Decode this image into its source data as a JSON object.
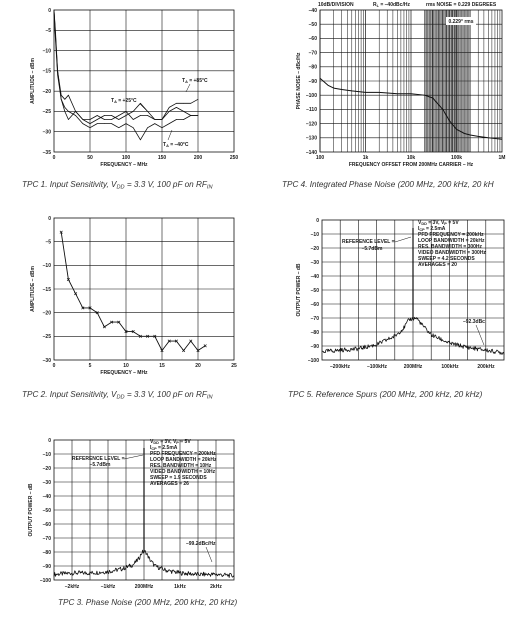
{
  "charts": [
    {
      "id": "tpc1",
      "caption": {
        "pre": "TPC 1.  Input Sensitivity, V",
        "sub1": "DD",
        "mid": " = 3.3 V, 100 pF on RF",
        "sub2": "IN"
      },
      "ylabel": "AMPLITUDE – dBm",
      "xlabel": "FREQUENCY – MHz",
      "xticks": [
        "0",
        "50",
        "100",
        "150",
        "200",
        "250"
      ],
      "yticks": [
        "0",
        "–5",
        "–10",
        "–15",
        "–20",
        "–25",
        "–30",
        "–35"
      ],
      "annotations": [
        {
          "pre": "T",
          "sub": "A",
          "post": " = +85°C"
        },
        {
          "pre": "T",
          "sub": "A",
          "post": " = +25°C"
        },
        {
          "pre": "T",
          "sub": "A",
          "post": " = –40°C"
        }
      ]
    },
    {
      "id": "tpc2",
      "caption": {
        "pre": "TPC 2.  Input Sensitivity, V",
        "sub1": "DD",
        "mid": " = 3.3 V, 100 pF on RF",
        "sub2": "IN"
      },
      "ylabel": "AMPLITUDE – dBm",
      "xlabel": "FREQUENCY – MHz",
      "xticks": [
        "0",
        "5",
        "10",
        "15",
        "20",
        "25"
      ],
      "yticks": [
        "0",
        "–5",
        "–10",
        "–15",
        "–20",
        "–25",
        "–30"
      ]
    },
    {
      "id": "tpc3",
      "caption": "TPC 3.  Phase Noise (200 MHz, 200 kHz, 20 kHz)",
      "ylabel": "OUTPUT POWER – dB",
      "xticks": [
        "–2kHz",
        "–1kHz",
        "200MHz",
        "1kHz",
        "2kHz"
      ],
      "yticks": [
        "0",
        "–10",
        "–20",
        "–30",
        "–40",
        "–50",
        "–60",
        "–70",
        "–80",
        "–90",
        "–100"
      ],
      "ref_label": "REFERENCE LEVEL =",
      "ref_value": "–5.7dBm",
      "settings": [
        "V_DD = 3V, V_P = 5V",
        "I_CP = 2.5mA",
        "PFD FREQUENCY = 200kHz",
        "LOOP BANDWIDTH = 20kHz",
        "RES. BANDWIDTH = 10Hz",
        "VIDEO BANDWIDTH = 10Hz",
        "SWEEP = 1.9 SECONDS",
        "AVERAGES = 26"
      ],
      "marker": "–99.2dBc/Hz"
    },
    {
      "id": "tpc4",
      "caption": "TPC 4.  Integrated Phase Noise (200 MHz, 200 kHz, 20 kH",
      "header_left": "10dB/DIVISION",
      "header_mid": "R_L = –40dBc/Hz",
      "header_right": "rms NOISE = 0.229 DEGREES",
      "inset": "0.229° rms",
      "ylabel": "PHASE NOISE – dBc/Hz",
      "xlabel": "FREQUENCY OFFSET FROM 200MHz CARRIER – Hz",
      "xticks": [
        "100",
        "1k",
        "10k",
        "100k",
        "1M"
      ],
      "yticks": [
        "–40",
        "–50",
        "–60",
        "–70",
        "–80",
        "–90",
        "–100",
        "–110",
        "–120",
        "–130",
        "–140"
      ]
    },
    {
      "id": "tpc5",
      "caption": "TPC 5.  Reference Spurs (200 MHz, 200 kHz, 20 kHz)",
      "ylabel": "OUTPUT POWER – dB",
      "xticks": [
        "–200kHz",
        "–100kHz",
        "200MHz",
        "100kHz",
        "200kHz"
      ],
      "yticks": [
        "0",
        "–10",
        "–20",
        "–30",
        "–40",
        "–50",
        "–60",
        "–70",
        "–80",
        "–90",
        "–100"
      ],
      "ref_label": "REFERENCE LEVEL =",
      "ref_value": "–5.7dBm",
      "settings": [
        "V_DD = 3V, V_P = 5V",
        "I_CP = 2.5mA",
        "PFD FREQUENCY = 200kHz",
        "LOOP BANDWIDTH = 20kHz",
        "RES. BANDWIDTH = 300Hz",
        "VIDEO BANDWIDTH = 300Hz",
        "SWEEP = 4.2 SECONDS",
        "AVERAGES = 20"
      ],
      "marker": "–92.3dBc"
    }
  ],
  "chart_data": [
    {
      "type": "line",
      "xlim": [
        0,
        250
      ],
      "ylim": [
        -35,
        0
      ],
      "series": [
        {
          "x": [
            0,
            2,
            5,
            10,
            15,
            20,
            30,
            40,
            50,
            60,
            70,
            80,
            90,
            100,
            110,
            120,
            130,
            140,
            150,
            160,
            170,
            180,
            190,
            200
          ],
          "values": [
            0,
            -5,
            -15,
            -22,
            -25,
            -27,
            -25,
            -27,
            -27,
            -26,
            -27,
            -27,
            -26,
            -25,
            -27,
            -26,
            -26,
            -27,
            -27,
            -24,
            -23,
            -23,
            -23,
            -22
          ]
        },
        {
          "x": [
            0,
            2,
            5,
            10,
            15,
            20,
            30,
            40,
            50,
            60,
            70,
            80,
            90,
            100,
            110,
            120,
            130,
            140,
            150,
            160,
            170,
            180,
            190,
            200
          ],
          "values": [
            0,
            -6,
            -15,
            -21,
            -22,
            -21,
            -25,
            -27,
            -28,
            -27,
            -26,
            -26,
            -27,
            -26,
            -25,
            -23,
            -25,
            -27,
            -27,
            -25,
            -24,
            -25,
            -26,
            -26
          ]
        },
        {
          "x": [
            0,
            2,
            5,
            10,
            15,
            20,
            30,
            40,
            50,
            60,
            70,
            80,
            90,
            100,
            110,
            120,
            130,
            140,
            150,
            160,
            170,
            180,
            190,
            200
          ],
          "values": [
            0,
            -7,
            -16,
            -22,
            -24,
            -25,
            -26,
            -28,
            -29,
            -28,
            -28,
            -28,
            -29,
            -28,
            -29,
            -32,
            -29,
            -28,
            -29,
            -28,
            -27,
            -27,
            -26,
            -26
          ]
        }
      ]
    },
    {
      "type": "line",
      "xlim": [
        0,
        25
      ],
      "ylim": [
        -30,
        0
      ],
      "x": [
        1,
        2,
        3,
        4,
        5,
        6,
        7,
        8,
        9,
        10,
        11,
        12,
        13,
        14,
        15,
        16,
        17,
        18,
        19,
        20,
        21
      ],
      "values": [
        -3,
        -13,
        -16,
        -19,
        -19,
        -20,
        -23,
        -22,
        -22,
        -24,
        -24,
        -25,
        -25,
        -25,
        -28,
        -26,
        -26,
        -28,
        -26,
        -28,
        -27
      ]
    },
    {
      "type": "line",
      "xlim": [
        -2.5,
        2.5
      ],
      "ylim": [
        -100,
        0
      ],
      "x": [
        -2.5,
        -2.0,
        -1.5,
        -1.0,
        -0.6,
        -0.3,
        -0.15,
        -0.05,
        0,
        0.05,
        0.15,
        0.3,
        0.6,
        1.0,
        1.5,
        2.0,
        2.5
      ],
      "values": [
        -96,
        -95,
        -95,
        -94,
        -92,
        -89,
        -85,
        -80,
        -5.7,
        -80,
        -85,
        -90,
        -93,
        -95,
        -96,
        -96,
        -97
      ]
    },
    {
      "type": "line",
      "xscale": "log",
      "xlim": [
        100,
        1000000
      ],
      "ylim": [
        -140,
        -40
      ],
      "x": [
        100,
        150,
        200,
        300,
        500,
        1000,
        2000,
        5000,
        10000,
        20000,
        30000,
        50000,
        70000,
        100000,
        150000,
        200000,
        300000,
        500000,
        1000000
      ],
      "values": [
        -88,
        -93,
        -95,
        -96,
        -97,
        -98,
        -98,
        -99,
        -99,
        -100,
        -102,
        -110,
        -118,
        -124,
        -127,
        -128,
        -129,
        -130,
        -131
      ]
    },
    {
      "type": "line",
      "xlim": [
        -250,
        250
      ],
      "ylim": [
        -100,
        0
      ],
      "x": [
        -250,
        -200,
        -150,
        -100,
        -50,
        -25,
        -10,
        0,
        10,
        25,
        50,
        100,
        150,
        200,
        250
      ],
      "values": [
        -94,
        -93,
        -92,
        -89,
        -83,
        -77,
        -71,
        -5.7,
        -70,
        -75,
        -82,
        -88,
        -91,
        -93,
        -95
      ]
    }
  ]
}
